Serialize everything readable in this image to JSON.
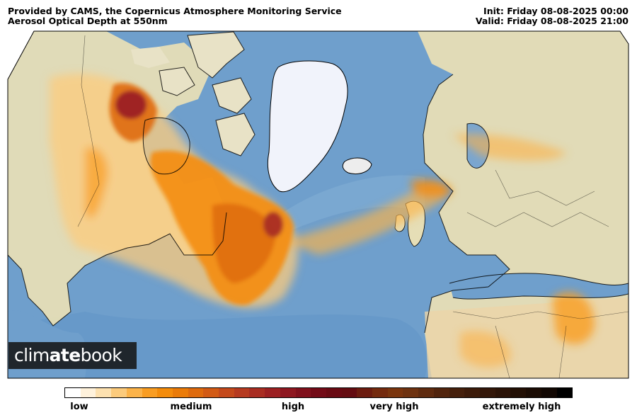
{
  "header": {
    "provider": "Provided by CAMS, the Copernicus Atmosphere Monitoring Service",
    "product": "Aerosol Optical Depth at 550nm",
    "init": "Init: Friday 08-08-2025 00:00",
    "valid": "Valid: Friday 08-08-2025 21:00"
  },
  "logo": {
    "part1": "clim",
    "part2": "ate",
    "part3": "book"
  },
  "legend": {
    "labels": [
      "low",
      "medium",
      "high",
      "very high",
      "extremely high"
    ],
    "colors": [
      "#ffffff",
      "#fff2dc",
      "#fde1b0",
      "#fccb7c",
      "#fcb349",
      "#f99d22",
      "#f48c0b",
      "#ea7b08",
      "#de6a0d",
      "#d25a14",
      "#c4491b",
      "#b63a20",
      "#a92d22",
      "#9c2022",
      "#8e1720",
      "#80101c",
      "#730b17",
      "#690a13",
      "#640c11",
      "#6c1c0f",
      "#742a0e",
      "#7a350e",
      "#6e3210",
      "#5f2b0f",
      "#51240d",
      "#45200c",
      "#3c1b0a",
      "#331709",
      "#2b1307",
      "#231005",
      "#1b0c04",
      "#120803",
      "#000000"
    ]
  },
  "colors": {
    "ocean": "#6f9fcc",
    "land": "#e6deb6",
    "ice": "#f2f4fb",
    "aod_low": "#fccb7c",
    "aod_medium": "#f48c0b",
    "aod_high": "#a92d22"
  }
}
